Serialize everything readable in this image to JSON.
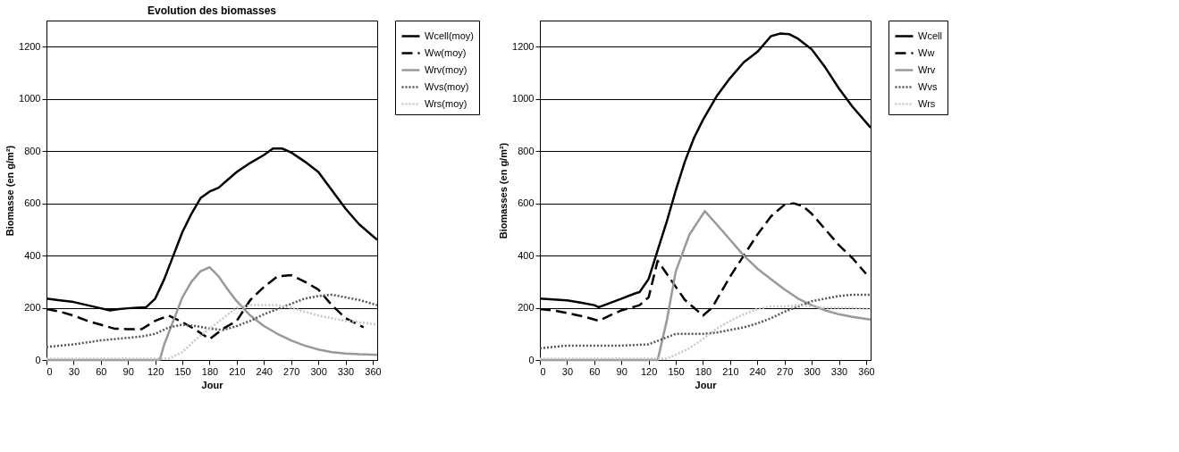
{
  "chart_data": [
    {
      "type": "line",
      "title": "Evolution des biomasses",
      "xlabel": "Jour",
      "ylabel": "Biomasse (en g/m²)",
      "xlim": [
        0,
        365
      ],
      "xticks": [
        0,
        30,
        60,
        90,
        120,
        150,
        180,
        210,
        240,
        270,
        300,
        330,
        360
      ],
      "ylim": [
        0,
        1300
      ],
      "yticks": [
        0,
        200,
        400,
        600,
        800,
        1000,
        1200
      ],
      "grid": "y",
      "legend": "right",
      "marker": "none",
      "series": [
        {
          "name": "Wcell(moy)",
          "color": "#000000",
          "line_style": "solid",
          "x": [
            0,
            15,
            30,
            45,
            60,
            70,
            80,
            90,
            100,
            110,
            120,
            130,
            140,
            150,
            160,
            170,
            180,
            190,
            200,
            210,
            225,
            240,
            250,
            260,
            270,
            285,
            300,
            315,
            330,
            345,
            365
          ],
          "values": [
            235,
            228,
            222,
            210,
            198,
            190,
            195,
            198,
            200,
            202,
            235,
            310,
            400,
            490,
            560,
            620,
            645,
            660,
            690,
            720,
            755,
            785,
            810,
            810,
            795,
            760,
            720,
            650,
            580,
            520,
            460
          ]
        },
        {
          "name": "Ww(moy)",
          "color": "#000000",
          "line_style": "dashed",
          "x": [
            0,
            15,
            30,
            45,
            60,
            75,
            90,
            105,
            120,
            135,
            150,
            165,
            180,
            195,
            210,
            225,
            240,
            255,
            270,
            285,
            300,
            315,
            330,
            350
          ],
          "values": [
            195,
            185,
            170,
            150,
            135,
            120,
            118,
            118,
            150,
            170,
            145,
            115,
            80,
            120,
            150,
            230,
            280,
            320,
            325,
            300,
            270,
            210,
            160,
            125
          ]
        },
        {
          "name": "Wrv(moy)",
          "color": "#999999",
          "line_style": "solid",
          "x": [
            0,
            60,
            125,
            130,
            140,
            150,
            160,
            170,
            180,
            190,
            200,
            210,
            225,
            240,
            255,
            270,
            285,
            300,
            315,
            330,
            345,
            365
          ],
          "values": [
            0,
            0,
            0,
            60,
            150,
            240,
            300,
            340,
            355,
            320,
            270,
            225,
            170,
            130,
            100,
            75,
            55,
            40,
            30,
            25,
            22,
            20
          ]
        },
        {
          "name": "Wvs(moy)",
          "color": "#555555",
          "line_style": "dotted",
          "x": [
            0,
            30,
            60,
            90,
            105,
            120,
            135,
            150,
            165,
            180,
            195,
            210,
            225,
            240,
            255,
            270,
            285,
            300,
            315,
            330,
            345,
            365
          ],
          "values": [
            50,
            60,
            75,
            85,
            90,
            100,
            125,
            135,
            130,
            120,
            115,
            130,
            150,
            175,
            195,
            215,
            235,
            245,
            250,
            240,
            230,
            210
          ]
        },
        {
          "name": "Wrs(moy)",
          "color": "#c8c8c8",
          "line_style": "dotted",
          "x": [
            0,
            60,
            135,
            150,
            165,
            180,
            195,
            210,
            225,
            240,
            255,
            270,
            285,
            300,
            315,
            330,
            345,
            365
          ],
          "values": [
            5,
            5,
            5,
            30,
            80,
            120,
            160,
            200,
            210,
            210,
            210,
            200,
            185,
            170,
            160,
            150,
            145,
            135
          ]
        }
      ]
    },
    {
      "type": "line",
      "xlabel": "Jour",
      "ylabel": "Biomasses (en g/m²)",
      "xlim": [
        0,
        365
      ],
      "xticks": [
        0,
        30,
        60,
        90,
        120,
        150,
        180,
        210,
        240,
        270,
        300,
        330,
        360
      ],
      "ylim": [
        0,
        1300
      ],
      "yticks": [
        0,
        200,
        400,
        600,
        800,
        1000,
        1200
      ],
      "grid": "y",
      "legend": "right",
      "marker": "none",
      "series": [
        {
          "name": "Wcell",
          "color": "#000000",
          "line_style": "solid",
          "x": [
            0,
            15,
            30,
            45,
            60,
            65,
            75,
            90,
            105,
            110,
            120,
            130,
            140,
            150,
            160,
            170,
            180,
            195,
            210,
            225,
            240,
            255,
            265,
            275,
            285,
            300,
            315,
            330,
            345,
            365
          ],
          "values": [
            235,
            232,
            228,
            220,
            210,
            202,
            215,
            235,
            255,
            260,
            310,
            420,
            530,
            650,
            760,
            850,
            920,
            1010,
            1080,
            1140,
            1180,
            1240,
            1250,
            1248,
            1230,
            1190,
            1120,
            1040,
            970,
            890
          ]
        },
        {
          "name": "Ww",
          "color": "#000000",
          "line_style": "dashed",
          "x": [
            0,
            15,
            30,
            50,
            65,
            80,
            90,
            110,
            120,
            130,
            140,
            150,
            160,
            170,
            180,
            190,
            200,
            210,
            225,
            240,
            255,
            270,
            280,
            290,
            300,
            315,
            330,
            345,
            360
          ],
          "values": [
            195,
            190,
            180,
            165,
            150,
            175,
            190,
            210,
            240,
            380,
            330,
            280,
            230,
            200,
            170,
            200,
            260,
            320,
            400,
            480,
            550,
            595,
            600,
            590,
            560,
            500,
            440,
            390,
            330
          ]
        },
        {
          "name": "Wrv",
          "color": "#999999",
          "line_style": "solid",
          "x": [
            0,
            60,
            130,
            140,
            150,
            165,
            182,
            195,
            210,
            225,
            240,
            255,
            270,
            285,
            300,
            315,
            330,
            345,
            365
          ],
          "values": [
            0,
            0,
            0,
            150,
            340,
            480,
            570,
            520,
            460,
            400,
            350,
            310,
            270,
            235,
            210,
            190,
            175,
            165,
            155
          ]
        },
        {
          "name": "Wvs",
          "color": "#555555",
          "line_style": "dotted",
          "x": [
            0,
            15,
            30,
            60,
            90,
            120,
            135,
            150,
            180,
            195,
            210,
            225,
            240,
            255,
            270,
            285,
            300,
            315,
            330,
            345,
            365
          ],
          "values": [
            45,
            50,
            55,
            55,
            55,
            60,
            80,
            100,
            100,
            105,
            115,
            125,
            140,
            160,
            185,
            205,
            225,
            235,
            245,
            250,
            250
          ]
        },
        {
          "name": "Wrs",
          "color": "#c8c8c8",
          "line_style": "dotted",
          "x": [
            0,
            60,
            140,
            150,
            165,
            180,
            195,
            210,
            225,
            240,
            255,
            270,
            285,
            300,
            315,
            330,
            345,
            365
          ],
          "values": [
            5,
            5,
            5,
            20,
            45,
            80,
            120,
            150,
            175,
            195,
            205,
            205,
            210,
            205,
            200,
            200,
            200,
            195
          ]
        }
      ]
    }
  ]
}
